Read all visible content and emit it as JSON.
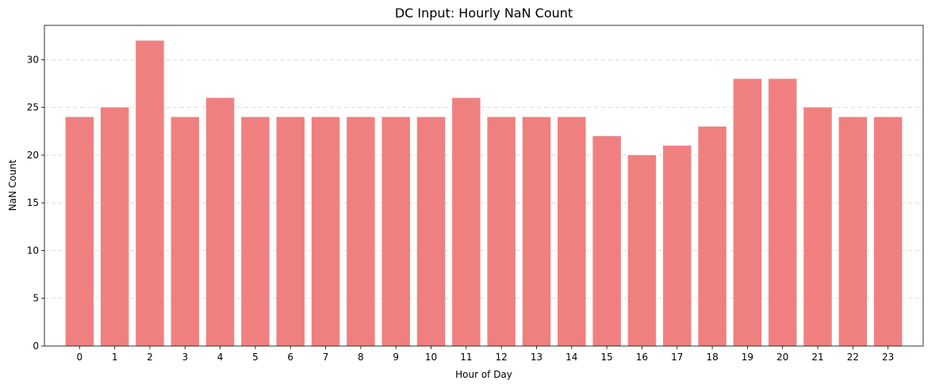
{
  "chart_data": {
    "type": "bar",
    "title": "DC Input: Hourly NaN Count",
    "xlabel": "Hour of Day",
    "ylabel": "NaN Count",
    "categories": [
      "0",
      "1",
      "2",
      "3",
      "4",
      "5",
      "6",
      "7",
      "8",
      "9",
      "10",
      "11",
      "12",
      "13",
      "14",
      "15",
      "16",
      "17",
      "18",
      "19",
      "20",
      "21",
      "22",
      "23"
    ],
    "values": [
      24,
      25,
      32,
      24,
      26,
      24,
      24,
      24,
      24,
      24,
      24,
      26,
      24,
      24,
      24,
      22,
      20,
      21,
      23,
      28,
      28,
      25,
      24,
      24
    ],
    "ylim": [
      0,
      33.6
    ],
    "yticks": [
      0,
      5,
      10,
      15,
      20,
      25,
      30
    ],
    "grid": "y-axis dashed",
    "legend": "none",
    "bar_color": "#f08080"
  }
}
